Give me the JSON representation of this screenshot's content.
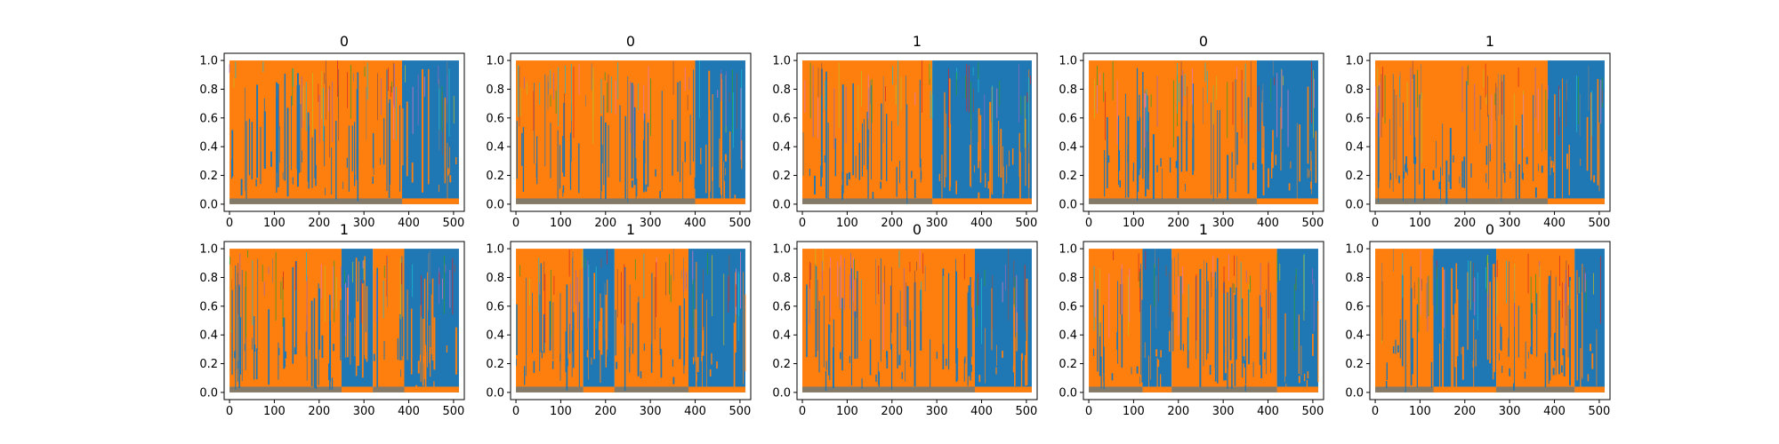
{
  "chart_data": {
    "type": "line",
    "layout": {
      "rows": 2,
      "cols": 5
    },
    "x_ticks": [
      0,
      100,
      200,
      300,
      400,
      500
    ],
    "y_ticks": [
      "0.0",
      "0.2",
      "0.4",
      "0.6",
      "0.8",
      "1.0"
    ],
    "xlim": [
      -12,
      524
    ],
    "ylim": [
      -0.05,
      1.05
    ],
    "grid": false,
    "legend": "none",
    "series_colors": {
      "dominant_a": "#1f77b4",
      "dominant_b": "#ff7f0e",
      "minor": [
        "#17becf",
        "#2ca02c",
        "#d62728",
        "#9467bd",
        "#bcbd22",
        "#e377c2",
        "#8c564b",
        "#7f7f7f"
      ]
    },
    "panels": [
      {
        "title": "0",
        "segments": [
          [
            0,
            385,
            "b"
          ],
          [
            385,
            512,
            "a"
          ]
        ]
      },
      {
        "title": "0",
        "segments": [
          [
            0,
            400,
            "b"
          ],
          [
            400,
            512,
            "a"
          ]
        ]
      },
      {
        "title": "1",
        "segments": [
          [
            0,
            290,
            "b"
          ],
          [
            290,
            512,
            "a"
          ]
        ]
      },
      {
        "title": "0",
        "segments": [
          [
            0,
            375,
            "b"
          ],
          [
            375,
            512,
            "a"
          ]
        ]
      },
      {
        "title": "1",
        "segments": [
          [
            0,
            385,
            "b"
          ],
          [
            385,
            512,
            "a"
          ]
        ]
      },
      {
        "title": "1",
        "segments": [
          [
            0,
            250,
            "b"
          ],
          [
            250,
            320,
            "a"
          ],
          [
            320,
            390,
            "b"
          ],
          [
            390,
            512,
            "a"
          ]
        ]
      },
      {
        "title": "1",
        "segments": [
          [
            0,
            150,
            "b"
          ],
          [
            150,
            220,
            "a"
          ],
          [
            220,
            385,
            "b"
          ],
          [
            385,
            512,
            "a"
          ]
        ]
      },
      {
        "title": "0",
        "segments": [
          [
            0,
            385,
            "b"
          ],
          [
            385,
            512,
            "a"
          ]
        ]
      },
      {
        "title": "1",
        "segments": [
          [
            0,
            120,
            "b"
          ],
          [
            120,
            185,
            "a"
          ],
          [
            185,
            420,
            "b"
          ],
          [
            420,
            512,
            "a"
          ]
        ]
      },
      {
        "title": "0",
        "segments": [
          [
            0,
            130,
            "b"
          ],
          [
            130,
            270,
            "a"
          ],
          [
            270,
            445,
            "b"
          ],
          [
            445,
            512,
            "a"
          ]
        ]
      }
    ]
  }
}
